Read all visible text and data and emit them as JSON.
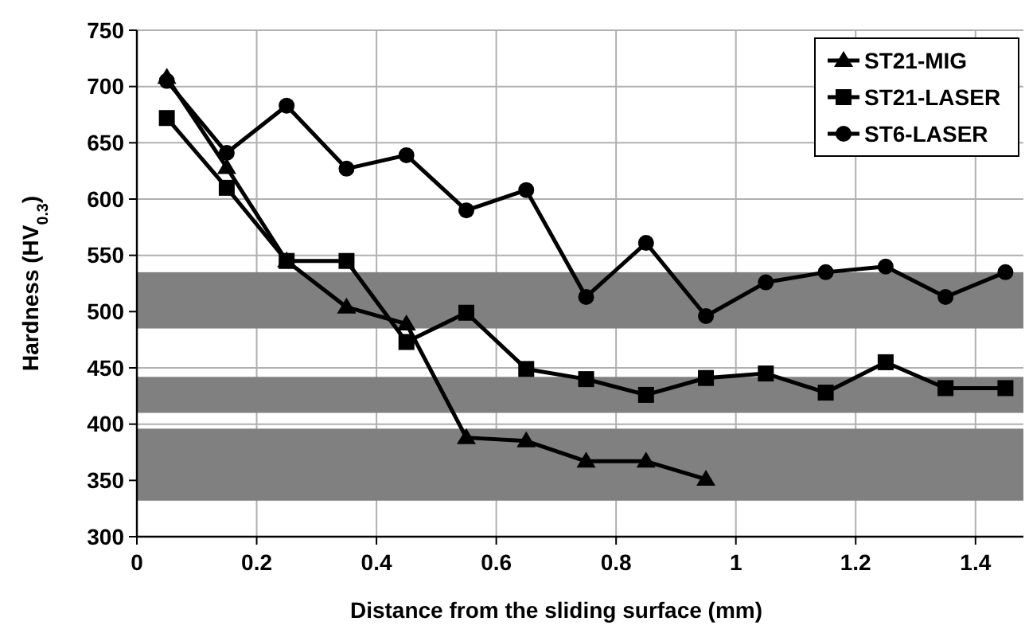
{
  "chart_data": {
    "type": "line",
    "xlabel": "Distance from the sliding surface (mm)",
    "ylabel": "Hardness (HV$_{0.3}$)",
    "xlim": [
      0,
      1.48
    ],
    "xticks": [
      0,
      0.2,
      0.4,
      0.6,
      0.8,
      1,
      1.2,
      1.4
    ],
    "ylim": [
      300,
      750
    ],
    "yticks": [
      300,
      350,
      400,
      450,
      500,
      550,
      600,
      650,
      700,
      750
    ],
    "grid": true,
    "legend": "top right",
    "line_style": "solid",
    "bands": [
      {
        "axis": "y",
        "from": 485,
        "to": 535,
        "color": "#808080"
      },
      {
        "axis": "y",
        "from": 410,
        "to": 442,
        "color": "#808080"
      },
      {
        "axis": "y",
        "from": 332,
        "to": 396,
        "color": "#808080"
      }
    ],
    "series": [
      {
        "name": "ST21-MIG",
        "color": "#000000",
        "marker": "triangle",
        "x": [
          0.05,
          0.15,
          0.25,
          0.35,
          0.45,
          0.55,
          0.65,
          0.75,
          0.85,
          0.95
        ],
        "values": [
          708,
          628,
          545,
          504,
          489,
          388,
          385,
          367,
          367,
          351
        ]
      },
      {
        "name": "ST21-LASER",
        "color": "#000000",
        "marker": "square",
        "x": [
          0.05,
          0.15,
          0.25,
          0.35,
          0.45,
          0.55,
          0.65,
          0.75,
          0.85,
          0.95,
          1.05,
          1.15,
          1.25,
          1.35,
          1.45
        ],
        "values": [
          672,
          610,
          545,
          545,
          473,
          499,
          449,
          440,
          426,
          441,
          445,
          428,
          455,
          432,
          432
        ]
      },
      {
        "name": "ST6-LASER",
        "color": "#000000",
        "marker": "circle",
        "x": [
          0.05,
          0.15,
          0.25,
          0.35,
          0.45,
          0.55,
          0.65,
          0.75,
          0.85,
          0.95,
          1.05,
          1.15,
          1.25,
          1.35,
          1.45
        ],
        "values": [
          705,
          641,
          683,
          627,
          639,
          590,
          608,
          513,
          561,
          496,
          526,
          535,
          540,
          513,
          535
        ]
      }
    ]
  }
}
